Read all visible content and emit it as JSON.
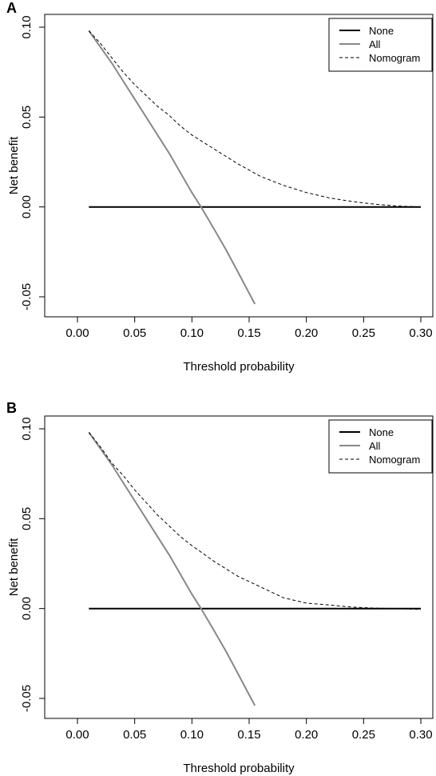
{
  "chart_data": [
    {
      "panel": "A",
      "type": "line",
      "xlabel": "Threshold probability",
      "ylabel": "Net benefit",
      "xlim": [
        0.0,
        0.3
      ],
      "ylim": [
        -0.055,
        0.1
      ],
      "xticks": [
        "0.00",
        "0.05",
        "0.10",
        "0.15",
        "0.20",
        "0.25",
        "0.30"
      ],
      "yticks": [
        "-0.05",
        "0.00",
        "0.05",
        "0.10"
      ],
      "legend_position": "top-right",
      "colors": {
        "None": "#000000",
        "All": "#888888",
        "Nomogram": "#000000"
      },
      "series": [
        {
          "name": "None",
          "style": "solid-thick",
          "x": [
            0.01,
            0.3
          ],
          "y": [
            0.0,
            0.0
          ]
        },
        {
          "name": "All",
          "style": "solid-gray",
          "x": [
            0.01,
            0.02,
            0.03,
            0.04,
            0.05,
            0.06,
            0.07,
            0.08,
            0.09,
            0.1,
            0.108,
            0.12,
            0.13,
            0.14,
            0.15,
            0.155
          ],
          "y": [
            0.098,
            0.089,
            0.08,
            0.07,
            0.06,
            0.05,
            0.04,
            0.03,
            0.019,
            0.008,
            0.0,
            -0.013,
            -0.024,
            -0.036,
            -0.048,
            -0.054
          ]
        },
        {
          "name": "Nomogram",
          "style": "dashed",
          "x": [
            0.01,
            0.02,
            0.03,
            0.04,
            0.05,
            0.06,
            0.07,
            0.08,
            0.09,
            0.1,
            0.12,
            0.14,
            0.16,
            0.18,
            0.2,
            0.22,
            0.24,
            0.26,
            0.28,
            0.3
          ],
          "y": [
            0.098,
            0.091,
            0.083,
            0.075,
            0.068,
            0.062,
            0.056,
            0.051,
            0.045,
            0.04,
            0.032,
            0.024,
            0.017,
            0.012,
            0.008,
            0.005,
            0.003,
            0.0015,
            0.0005,
            0.0
          ]
        }
      ]
    },
    {
      "panel": "B",
      "type": "line",
      "xlabel": "Threshold probability",
      "ylabel": "Net benefit",
      "xlim": [
        0.0,
        0.3
      ],
      "ylim": [
        -0.055,
        0.1
      ],
      "xticks": [
        "0.00",
        "0.05",
        "0.10",
        "0.15",
        "0.20",
        "0.25",
        "0.30"
      ],
      "yticks": [
        "-0.05",
        "0.00",
        "0.05",
        "0.10"
      ],
      "legend_position": "top-right",
      "colors": {
        "None": "#000000",
        "All": "#888888",
        "Nomogram": "#000000"
      },
      "series": [
        {
          "name": "None",
          "style": "solid-thick",
          "x": [
            0.01,
            0.3
          ],
          "y": [
            0.0,
            0.0
          ]
        },
        {
          "name": "All",
          "style": "solid-gray",
          "x": [
            0.01,
            0.02,
            0.03,
            0.04,
            0.05,
            0.06,
            0.07,
            0.08,
            0.09,
            0.1,
            0.108,
            0.12,
            0.13,
            0.14,
            0.15,
            0.155
          ],
          "y": [
            0.098,
            0.089,
            0.08,
            0.07,
            0.06,
            0.05,
            0.04,
            0.03,
            0.019,
            0.008,
            0.0,
            -0.013,
            -0.024,
            -0.036,
            -0.048,
            -0.054
          ]
        },
        {
          "name": "Nomogram",
          "style": "dashed",
          "x": [
            0.01,
            0.02,
            0.03,
            0.04,
            0.05,
            0.06,
            0.07,
            0.08,
            0.09,
            0.1,
            0.12,
            0.14,
            0.16,
            0.18,
            0.2,
            0.22,
            0.24,
            0.26,
            0.28,
            0.3
          ],
          "y": [
            0.098,
            0.09,
            0.081,
            0.074,
            0.066,
            0.059,
            0.052,
            0.046,
            0.04,
            0.035,
            0.026,
            0.018,
            0.012,
            0.006,
            0.003,
            0.002,
            0.0008,
            0.0002,
            0.0,
            -0.0005
          ]
        }
      ]
    }
  ]
}
